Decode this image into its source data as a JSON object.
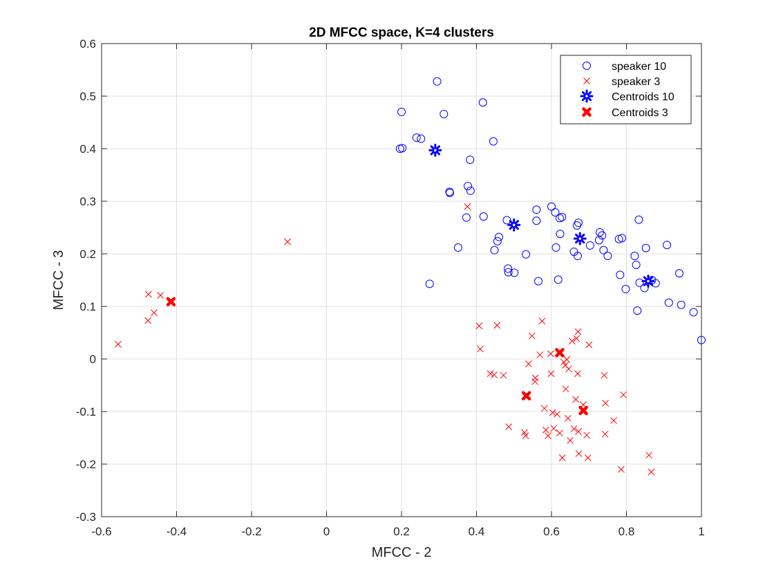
{
  "chart_data": {
    "type": "scatter",
    "title": "2D MFCC space, K=4 clusters",
    "xlabel": "MFCC - 2",
    "ylabel": "MFCC - 3",
    "xlim": [
      -0.6,
      1.0
    ],
    "ylim": [
      -0.3,
      0.6
    ],
    "xticks": [
      -0.6,
      -0.4,
      -0.2,
      0,
      0.2,
      0.4,
      0.6,
      0.8,
      1
    ],
    "yticks": [
      -0.3,
      -0.2,
      -0.1,
      0,
      0.1,
      0.2,
      0.3,
      0.4,
      0.5,
      0.6
    ],
    "xtick_labels": [
      "-0.6",
      "-0.4",
      "-0.2",
      "0",
      "0.2",
      "0.4",
      "0.6",
      "0.8",
      "1"
    ],
    "ytick_labels": [
      "-0.3",
      "-0.2",
      "-0.1",
      "0",
      "0.1",
      "0.2",
      "0.3",
      "0.4",
      "0.5",
      "0.6"
    ],
    "grid": true,
    "legend_position": "top-right",
    "series": [
      {
        "name": "speaker 10",
        "marker": "circle",
        "color": "#0000ff",
        "points": [
          [
            0.295,
            0.528
          ],
          [
            0.2,
            0.47
          ],
          [
            0.313,
            0.466
          ],
          [
            0.417,
            0.488
          ],
          [
            0.196,
            0.4
          ],
          [
            0.202,
            0.401
          ],
          [
            0.24,
            0.421
          ],
          [
            0.252,
            0.419
          ],
          [
            0.445,
            0.414
          ],
          [
            0.383,
            0.379
          ],
          [
            0.377,
            0.329
          ],
          [
            0.384,
            0.32
          ],
          [
            0.328,
            0.318
          ],
          [
            0.329,
            0.316
          ],
          [
            0.373,
            0.269
          ],
          [
            0.419,
            0.271
          ],
          [
            0.351,
            0.212
          ],
          [
            0.275,
            0.143
          ],
          [
            0.481,
            0.264
          ],
          [
            0.46,
            0.232
          ],
          [
            0.456,
            0.224
          ],
          [
            0.448,
            0.207
          ],
          [
            0.484,
            0.172
          ],
          [
            0.485,
            0.165
          ],
          [
            0.501,
            0.164
          ],
          [
            0.532,
            0.199
          ],
          [
            0.56,
            0.284
          ],
          [
            0.56,
            0.263
          ],
          [
            0.565,
            0.148
          ],
          [
            0.6,
            0.29
          ],
          [
            0.61,
            0.279
          ],
          [
            0.622,
            0.268
          ],
          [
            0.628,
            0.27
          ],
          [
            0.612,
            0.212
          ],
          [
            0.623,
            0.238
          ],
          [
            0.618,
            0.151
          ],
          [
            0.668,
            0.254
          ],
          [
            0.672,
            0.259
          ],
          [
            0.66,
            0.204
          ],
          [
            0.67,
            0.196
          ],
          [
            0.703,
            0.216
          ],
          [
            0.729,
            0.241
          ],
          [
            0.735,
            0.235
          ],
          [
            0.727,
            0.226
          ],
          [
            0.739,
            0.207
          ],
          [
            0.75,
            0.196
          ],
          [
            0.78,
            0.228
          ],
          [
            0.788,
            0.23
          ],
          [
            0.783,
            0.16
          ],
          [
            0.798,
            0.133
          ],
          [
            0.833,
            0.265
          ],
          [
            0.852,
            0.211
          ],
          [
            0.822,
            0.196
          ],
          [
            0.826,
            0.179
          ],
          [
            0.835,
            0.145
          ],
          [
            0.848,
            0.135
          ],
          [
            0.868,
            0.15
          ],
          [
            0.878,
            0.144
          ],
          [
            0.829,
            0.092
          ],
          [
            0.908,
            0.217
          ],
          [
            0.941,
            0.163
          ],
          [
            0.913,
            0.107
          ],
          [
            0.946,
            0.103
          ],
          [
            0.979,
            0.089
          ],
          [
            1.0,
            0.036
          ]
        ]
      },
      {
        "name": "speaker 3",
        "marker": "x",
        "color": "#ff0000",
        "points": [
          [
            -0.556,
            0.028
          ],
          [
            -0.475,
            0.123
          ],
          [
            -0.443,
            0.121
          ],
          [
            -0.476,
            0.073
          ],
          [
            -0.46,
            0.088
          ],
          [
            -0.104,
            0.223
          ],
          [
            0.376,
            0.29
          ],
          [
            0.455,
            0.064
          ],
          [
            0.41,
            0.019
          ],
          [
            0.407,
            0.063
          ],
          [
            0.437,
            -0.028
          ],
          [
            0.447,
            -0.03
          ],
          [
            0.472,
            -0.031
          ],
          [
            0.486,
            -0.129
          ],
          [
            0.528,
            -0.14
          ],
          [
            0.531,
            -0.146
          ],
          [
            0.539,
            -0.009
          ],
          [
            0.548,
            0.044
          ],
          [
            0.575,
            0.072
          ],
          [
            0.569,
            0.008
          ],
          [
            0.557,
            -0.036
          ],
          [
            0.556,
            -0.043
          ],
          [
            0.581,
            -0.094
          ],
          [
            0.585,
            -0.135
          ],
          [
            0.591,
            -0.146
          ],
          [
            0.598,
            0.01
          ],
          [
            0.599,
            -0.028
          ],
          [
            0.603,
            -0.102
          ],
          [
            0.606,
            -0.132
          ],
          [
            0.615,
            -0.105
          ],
          [
            0.622,
            -0.141
          ],
          [
            0.629,
            -0.188
          ],
          [
            0.633,
            -0.006
          ],
          [
            0.637,
            -0.012
          ],
          [
            0.641,
            -0.001
          ],
          [
            0.644,
            -0.113
          ],
          [
            0.646,
            -0.019
          ],
          [
            0.65,
            -0.155
          ],
          [
            0.655,
            0.034
          ],
          [
            0.66,
            -0.133
          ],
          [
            0.665,
            -0.077
          ],
          [
            0.667,
            0.039
          ],
          [
            0.67,
            -0.028
          ],
          [
            0.671,
            0.052
          ],
          [
            0.672,
            -0.138
          ],
          [
            0.673,
            -0.18
          ],
          [
            0.685,
            -0.087
          ],
          [
            0.697,
            -0.188
          ],
          [
            0.7,
            0.027
          ],
          [
            0.694,
            -0.145
          ],
          [
            0.741,
            -0.031
          ],
          [
            0.744,
            -0.084
          ],
          [
            0.743,
            -0.143
          ],
          [
            0.766,
            -0.117
          ],
          [
            0.786,
            -0.21
          ],
          [
            0.792,
            -0.068
          ],
          [
            0.86,
            -0.183
          ],
          [
            0.866,
            -0.215
          ],
          [
            0.638,
            -0.057
          ]
        ]
      },
      {
        "name": "Centroids 10",
        "marker": "star",
        "color": "#0000ff",
        "points": [
          [
            0.29,
            0.397
          ],
          [
            0.5,
            0.255
          ],
          [
            0.676,
            0.229
          ],
          [
            0.858,
            0.148
          ]
        ]
      },
      {
        "name": "Centroids 3",
        "marker": "filled-x",
        "color": "#ff0000",
        "points": [
          [
            -0.415,
            0.109
          ],
          [
            0.622,
            0.012
          ],
          [
            0.533,
            -0.07
          ],
          [
            0.685,
            -0.098
          ]
        ]
      }
    ]
  }
}
